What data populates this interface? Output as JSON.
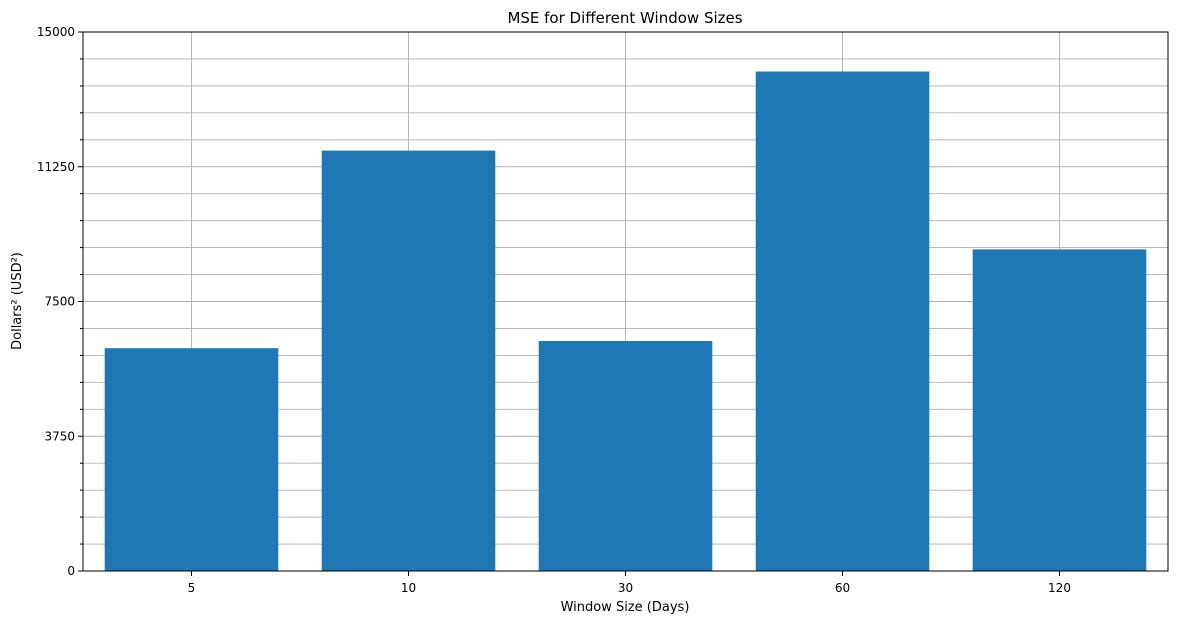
{
  "chart_data": {
    "type": "bar",
    "title": "MSE for Different Window Sizes",
    "xlabel": "Window Size (Days)",
    "ylabel": "Dollars² (USD²)",
    "categories": [
      "5",
      "10",
      "30",
      "60",
      "120"
    ],
    "values": [
      6200,
      11700,
      6400,
      13900,
      8950
    ],
    "ylim": [
      0,
      15000
    ],
    "yticks": [
      "0",
      "3750",
      "7500",
      "11250",
      "15000"
    ],
    "yticks_minor": [
      750,
      1500,
      2250,
      3000,
      4500,
      5250,
      6000,
      6750,
      8250,
      9000,
      9750,
      10500,
      12000,
      12750,
      13500,
      14250
    ],
    "grid": true,
    "bar_color": "#1f77b4"
  }
}
